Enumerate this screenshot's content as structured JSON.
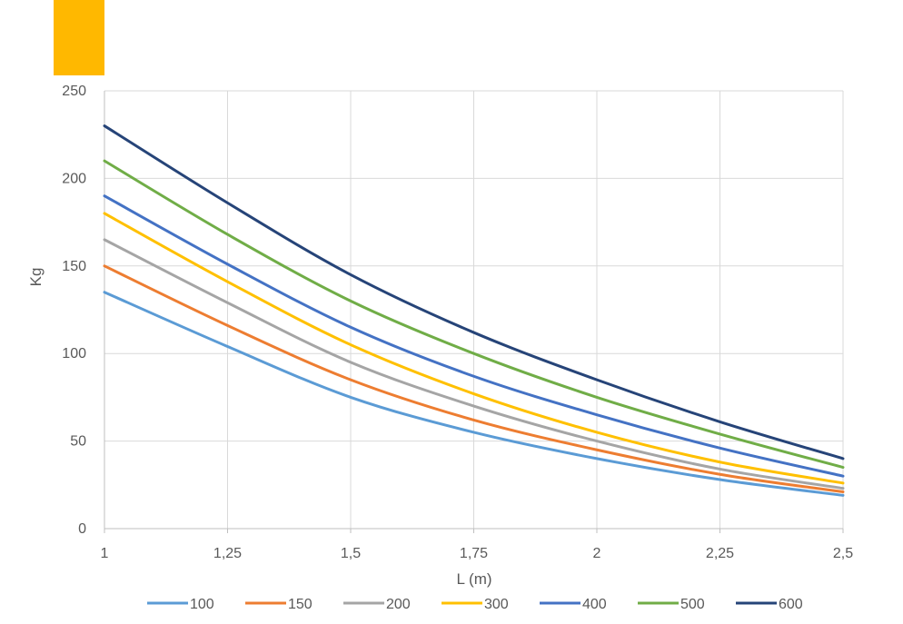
{
  "accent_color": "#FFB800",
  "chart_data": {
    "type": "line",
    "title": "",
    "xlabel": "L (m)",
    "ylabel": "Kg",
    "xlim": [
      1,
      2.5
    ],
    "ylim": [
      0,
      250
    ],
    "x_ticks": [
      1,
      1.25,
      1.5,
      1.75,
      2,
      2.25,
      2.5
    ],
    "x_tick_labels": [
      "1",
      "1,25",
      "1,5",
      "1,75",
      "2",
      "2,25",
      "2,5"
    ],
    "y_ticks": [
      0,
      50,
      100,
      150,
      200,
      250
    ],
    "y_tick_labels": [
      "0",
      "50",
      "100",
      "150",
      "200",
      "250"
    ],
    "grid": true,
    "legend_position": "bottom",
    "x": [
      1,
      1.25,
      1.5,
      1.75,
      2,
      2.25,
      2.5
    ],
    "series": [
      {
        "name": "100",
        "color": "#5B9BD5",
        "values": [
          135,
          104,
          75,
          55,
          40,
          28,
          19
        ]
      },
      {
        "name": "150",
        "color": "#ED7D31",
        "values": [
          150,
          116,
          85,
          62,
          45,
          31,
          21
        ]
      },
      {
        "name": "200",
        "color": "#A5A5A5",
        "values": [
          165,
          129,
          95,
          70,
          50,
          34,
          23
        ]
      },
      {
        "name": "300",
        "color": "#FFC000",
        "values": [
          180,
          141,
          105,
          77,
          55,
          38,
          26
        ]
      },
      {
        "name": "400",
        "color": "#4472C4",
        "values": [
          190,
          151,
          115,
          87,
          65,
          46,
          30
        ]
      },
      {
        "name": "500",
        "color": "#70AD47",
        "values": [
          210,
          168,
          130,
          100,
          75,
          54,
          35
        ]
      },
      {
        "name": "600",
        "color": "#264478",
        "values": [
          230,
          186,
          145,
          112,
          85,
          61,
          40
        ]
      }
    ]
  }
}
